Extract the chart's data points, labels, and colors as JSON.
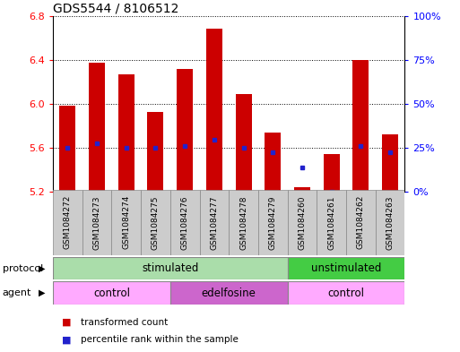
{
  "title": "GDS5544 / 8106512",
  "samples": [
    "GSM1084272",
    "GSM1084273",
    "GSM1084274",
    "GSM1084275",
    "GSM1084276",
    "GSM1084277",
    "GSM1084278",
    "GSM1084279",
    "GSM1084260",
    "GSM1084261",
    "GSM1084262",
    "GSM1084263"
  ],
  "bar_tops": [
    5.98,
    6.37,
    6.27,
    5.93,
    6.32,
    6.68,
    6.09,
    5.74,
    5.24,
    5.54,
    6.4,
    5.72
  ],
  "bar_bottom": 5.2,
  "percentile_values": [
    5.6,
    5.64,
    5.6,
    5.6,
    5.62,
    5.67,
    5.6,
    5.56,
    5.42,
    5.2,
    5.62,
    5.56
  ],
  "ylim": [
    5.2,
    6.8
  ],
  "yticks": [
    5.2,
    5.6,
    6.0,
    6.4,
    6.8
  ],
  "right_ytick_vals": [
    0,
    25,
    50,
    75,
    100
  ],
  "right_ylabels": [
    "0%",
    "25%",
    "50%",
    "75%",
    "100%"
  ],
  "bar_color": "#cc0000",
  "percentile_color": "#2222cc",
  "grid_color": "#000000",
  "protocol_stim_color": "#aaddaa",
  "protocol_unstim_color": "#44cc44",
  "agent_control_color": "#ffaaff",
  "agent_edelfosine_color": "#cc66cc",
  "sample_box_color": "#cccccc",
  "title_fontsize": 10,
  "bar_width": 0.55,
  "protocol_label": "protocol",
  "agent_label": "agent",
  "stimulated_label": "stimulated",
  "unstimulated_label": "unstimulated",
  "control_label": "control",
  "edelfosine_label": "edelfosine",
  "legend_bar_label": "transformed count",
  "legend_percentile_label": "percentile rank within the sample",
  "n_stimulated": 8,
  "n_control1": 4,
  "n_edelfosine": 4,
  "n_control2": 4
}
